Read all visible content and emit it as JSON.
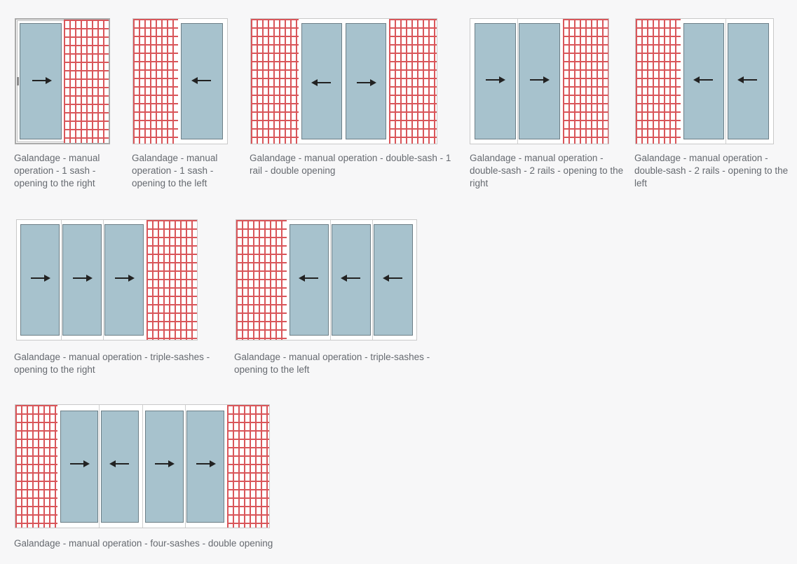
{
  "diagrams": [
    {
      "caption": "Galandage - manual operation - 1 sash - opening to the right",
      "arrows": [
        "right"
      ]
    },
    {
      "caption": "Galandage - manual operation - 1 sash - opening to the left",
      "arrows": [
        "left"
      ]
    },
    {
      "caption": "Galandage - manual operation - double-sash - 1 rail - double opening",
      "arrows": [
        "left",
        "right"
      ]
    },
    {
      "caption": "Galandage - manual operation - double-sash - 2 rails - opening to the right",
      "arrows": [
        "right",
        "right"
      ]
    },
    {
      "caption": "Galandage - manual operation - double-sash - 2 rails - opening to the left",
      "arrows": [
        "left",
        "left"
      ]
    },
    {
      "caption": "Galandage - manual operation - triple-sashes - opening to the right",
      "arrows": [
        "right",
        "right",
        "right"
      ]
    },
    {
      "caption": "Galandage - manual operation - triple-sashes - opening to the left",
      "arrows": [
        "left",
        "left",
        "left"
      ]
    },
    {
      "caption": "Galandage - manual operation - four-sashes - double opening",
      "arrows": [
        "right",
        "left",
        "right",
        "right"
      ]
    }
  ],
  "colors": {
    "brick": "#d9565a",
    "glass": "#a7c2cd",
    "frame": "#c9c9c9"
  }
}
